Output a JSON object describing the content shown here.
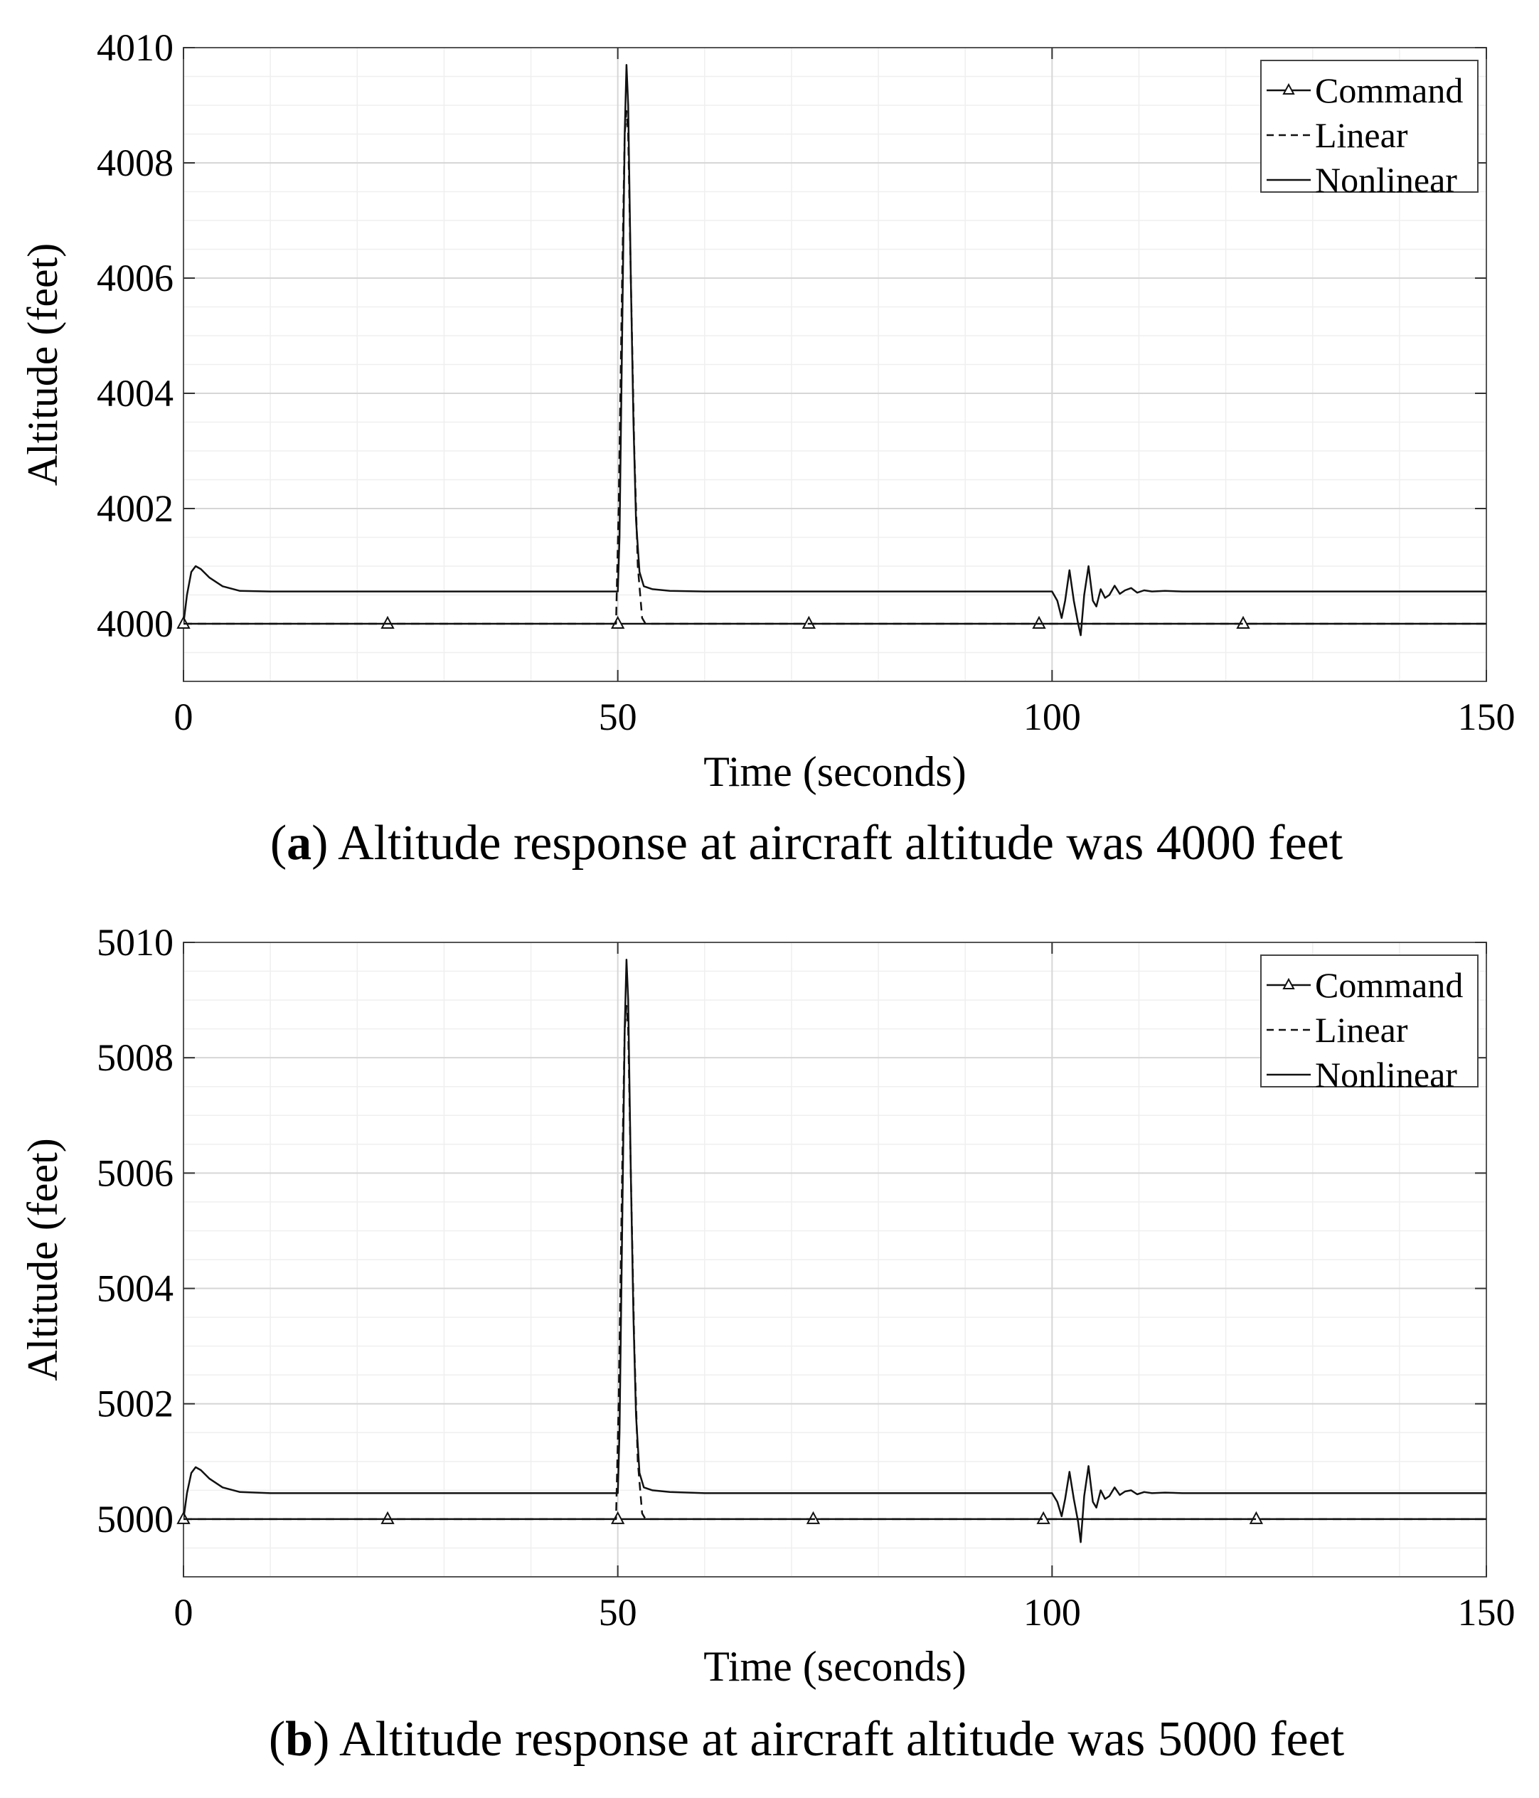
{
  "chart_data": [
    {
      "type": "line",
      "caption_letter": "a",
      "caption_text": "Altitude response at aircraft altitude was 4000 feet",
      "xlabel": "Time (seconds)",
      "ylabel": "Altitude (feet)",
      "xlim": [
        0,
        150
      ],
      "ylim": [
        3999,
        4010
      ],
      "xticks": [
        "0",
        "50",
        "100",
        "150"
      ],
      "yticks": [
        "4000",
        "4002",
        "4004",
        "4006",
        "4008",
        "4010"
      ],
      "grid": true,
      "legend_position": "top-right",
      "series": [
        {
          "name": "Command",
          "style": "solid-triangle",
          "baseline": 4000,
          "markers_x": [
            0,
            23.5,
            50,
            72,
            98.5,
            122
          ]
        },
        {
          "name": "Linear",
          "style": "dashed",
          "baseline": 4000,
          "points": [
            [
              0,
              4000
            ],
            [
              49.8,
              4000
            ],
            [
              50.1,
              4002
            ],
            [
              50.5,
              4006
            ],
            [
              50.8,
              4008.5
            ],
            [
              51.0,
              4008.9
            ],
            [
              51.2,
              4008.5
            ],
            [
              51.5,
              4006
            ],
            [
              51.9,
              4003
            ],
            [
              52.3,
              4001
            ],
            [
              52.8,
              4000.1
            ],
            [
              53.2,
              4000
            ],
            [
              150,
              4000
            ]
          ]
        },
        {
          "name": "Nonlinear",
          "style": "solid",
          "points": [
            [
              0,
              4000
            ],
            [
              0.4,
              4000.5
            ],
            [
              0.9,
              4000.9
            ],
            [
              1.4,
              4001.0
            ],
            [
              2,
              4000.95
            ],
            [
              3,
              4000.8
            ],
            [
              4.5,
              4000.65
            ],
            [
              6.5,
              4000.57
            ],
            [
              10,
              4000.56
            ],
            [
              50,
              4000.56
            ],
            [
              50.2,
              4001.5
            ],
            [
              50.5,
              4005
            ],
            [
              50.8,
              4008.5
            ],
            [
              51.0,
              4009.7
            ],
            [
              51.2,
              4009
            ],
            [
              51.5,
              4006
            ],
            [
              51.8,
              4003.5
            ],
            [
              52.1,
              4001.8
            ],
            [
              52.5,
              4000.9
            ],
            [
              53,
              4000.65
            ],
            [
              54,
              4000.6
            ],
            [
              56,
              4000.57
            ],
            [
              60,
              4000.56
            ],
            [
              100,
              4000.56
            ],
            [
              100.6,
              4000.4
            ],
            [
              101.1,
              4000.1
            ],
            [
              101.5,
              4000.4
            ],
            [
              102,
              4000.93
            ],
            [
              102.5,
              4000.4
            ],
            [
              103,
              4000
            ],
            [
              103.3,
              3999.8
            ],
            [
              103.7,
              4000.5
            ],
            [
              104.2,
              4001.0
            ],
            [
              104.7,
              4000.4
            ],
            [
              105.1,
              4000.3
            ],
            [
              105.6,
              4000.6
            ],
            [
              106.1,
              4000.45
            ],
            [
              106.6,
              4000.5
            ],
            [
              107.2,
              4000.66
            ],
            [
              107.8,
              4000.52
            ],
            [
              108.4,
              4000.58
            ],
            [
              109.1,
              4000.62
            ],
            [
              109.8,
              4000.54
            ],
            [
              110.6,
              4000.58
            ],
            [
              111.5,
              4000.56
            ],
            [
              113,
              4000.57
            ],
            [
              115,
              4000.56
            ],
            [
              150,
              4000.56
            ]
          ]
        }
      ]
    },
    {
      "type": "line",
      "caption_letter": "b",
      "caption_text": "Altitude response at aircraft altitude was 5000 feet",
      "xlabel": "Time (seconds)",
      "ylabel": "Altitude (feet)",
      "xlim": [
        0,
        150
      ],
      "ylim": [
        4999,
        5010
      ],
      "xticks": [
        "0",
        "50",
        "100",
        "150"
      ],
      "yticks": [
        "5000",
        "5002",
        "5004",
        "5006",
        "5008",
        "5010"
      ],
      "grid": true,
      "legend_position": "top-right",
      "series": [
        {
          "name": "Command",
          "style": "solid-triangle",
          "baseline": 5000,
          "markers_x": [
            0,
            23.5,
            50,
            72.5,
            99,
            123.5
          ]
        },
        {
          "name": "Linear",
          "style": "dashed",
          "baseline": 5000,
          "points": [
            [
              0,
              5000
            ],
            [
              49.8,
              5000
            ],
            [
              50.1,
              5002
            ],
            [
              50.5,
              5006
            ],
            [
              50.8,
              5008.5
            ],
            [
              51.0,
              5008.9
            ],
            [
              51.2,
              5008.5
            ],
            [
              51.5,
              5006
            ],
            [
              51.9,
              5003
            ],
            [
              52.3,
              5001
            ],
            [
              52.8,
              5000.1
            ],
            [
              53.2,
              5000
            ],
            [
              150,
              5000
            ]
          ]
        },
        {
          "name": "Nonlinear",
          "style": "solid",
          "points": [
            [
              0,
              5000
            ],
            [
              0.4,
              5000.45
            ],
            [
              0.9,
              5000.8
            ],
            [
              1.4,
              5000.9
            ],
            [
              2,
              5000.85
            ],
            [
              3,
              5000.7
            ],
            [
              4.5,
              5000.55
            ],
            [
              6.5,
              5000.47
            ],
            [
              10,
              5000.45
            ],
            [
              50,
              5000.45
            ],
            [
              50.2,
              5001.5
            ],
            [
              50.5,
              5005
            ],
            [
              50.8,
              5008.5
            ],
            [
              51.0,
              5009.7
            ],
            [
              51.2,
              5009
            ],
            [
              51.5,
              5006
            ],
            [
              51.8,
              5003.5
            ],
            [
              52.1,
              5001.8
            ],
            [
              52.5,
              5000.8
            ],
            [
              53,
              5000.55
            ],
            [
              54,
              5000.5
            ],
            [
              56,
              5000.47
            ],
            [
              60,
              5000.45
            ],
            [
              100,
              5000.45
            ],
            [
              100.6,
              5000.3
            ],
            [
              101.1,
              5000.05
            ],
            [
              101.5,
              5000.35
            ],
            [
              102,
              5000.82
            ],
            [
              102.5,
              5000.35
            ],
            [
              103,
              4999.95
            ],
            [
              103.3,
              4999.6
            ],
            [
              103.7,
              5000.4
            ],
            [
              104.2,
              5000.92
            ],
            [
              104.7,
              5000.3
            ],
            [
              105.1,
              5000.2
            ],
            [
              105.6,
              5000.5
            ],
            [
              106.1,
              5000.35
            ],
            [
              106.6,
              5000.4
            ],
            [
              107.2,
              5000.55
            ],
            [
              107.8,
              5000.42
            ],
            [
              108.4,
              5000.48
            ],
            [
              109.1,
              5000.5
            ],
            [
              109.8,
              5000.43
            ],
            [
              110.6,
              5000.47
            ],
            [
              111.5,
              5000.45
            ],
            [
              113,
              5000.46
            ],
            [
              115,
              5000.45
            ],
            [
              150,
              5000.45
            ]
          ]
        }
      ]
    }
  ]
}
